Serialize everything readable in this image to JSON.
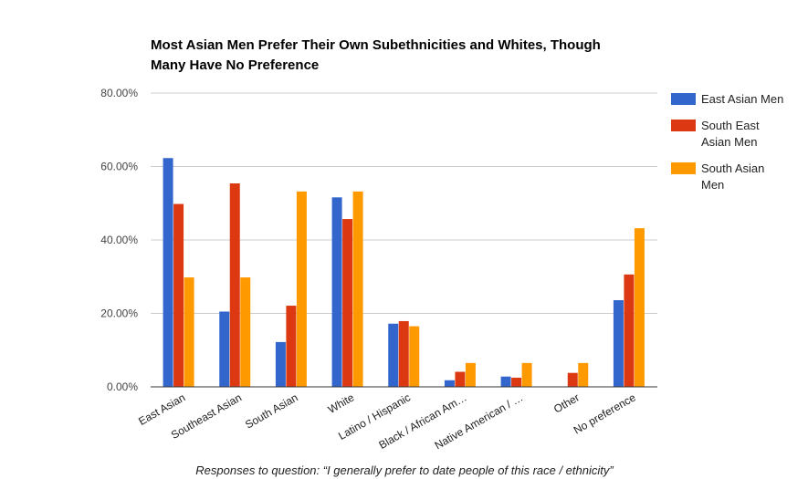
{
  "chart_data": {
    "type": "bar",
    "title_lines": [
      "Most Asian Men Prefer Their Own Subethnicities and Whites, Though",
      "Many Have No Preference"
    ],
    "xlabel": "Responses to question: “I generally prefer to date people of this race / ethnicity”",
    "ylabel": "",
    "ylim": [
      0,
      80
    ],
    "yticks": [
      0,
      20,
      40,
      60,
      80
    ],
    "ytick_labels": [
      "0.00%",
      "20.00%",
      "40.00%",
      "60.00%",
      "80.00%"
    ],
    "grid": true,
    "legend_position": "right",
    "categories": [
      "East Asian",
      "Southeast Asian",
      "South Asian",
      "White",
      "Latino / Hispanic",
      "Black / African Am…",
      "Native American / …",
      "Other",
      "No preference"
    ],
    "series": [
      {
        "name": "East Asian Men",
        "legend_lines": [
          "East Asian Men"
        ],
        "color": "#3366cc",
        "values": [
          62.3,
          20.5,
          12.2,
          51.6,
          17.2,
          1.8,
          2.8,
          0.0,
          23.6
        ]
      },
      {
        "name": "South East Asian Men",
        "legend_lines": [
          "South East",
          "Asian Men"
        ],
        "color": "#dc3912",
        "values": [
          49.8,
          55.4,
          22.1,
          45.7,
          17.9,
          4.1,
          2.5,
          3.8,
          30.6
        ]
      },
      {
        "name": "South Asian Men",
        "legend_lines": [
          "South Asian",
          "Men"
        ],
        "color": "#ff9900",
        "values": [
          29.8,
          29.8,
          53.2,
          53.2,
          16.5,
          6.5,
          6.5,
          6.5,
          43.2
        ]
      }
    ]
  }
}
